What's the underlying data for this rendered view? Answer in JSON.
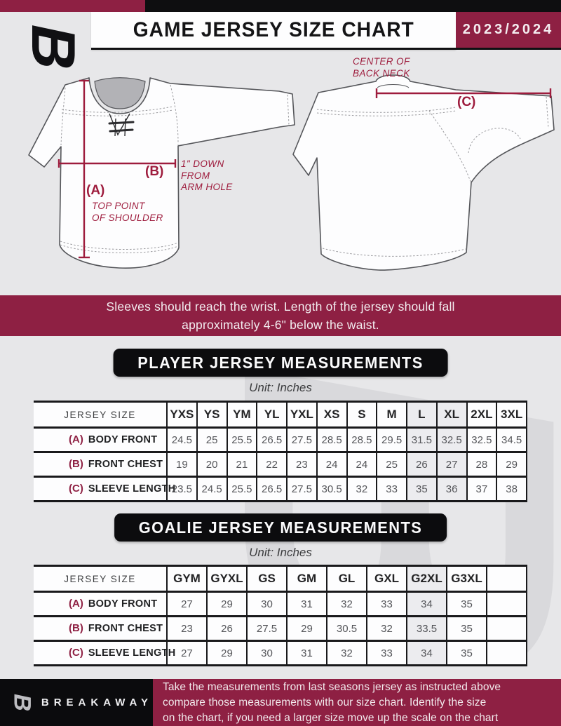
{
  "header": {
    "title": "GAME JERSEY SIZE CHART",
    "season": "2023/2024",
    "logo_glyph": "B"
  },
  "diagram": {
    "front_label_a": "(A)",
    "front_note_a": "TOP POINT\nOF SHOULDER",
    "front_label_b": "(B)",
    "front_note_b": "1\" DOWN\nFROM\nARM HOLE",
    "back_label_c": "(C)",
    "back_note_c": "CENTER OF\nBACK NECK"
  },
  "banner": {
    "lines": [
      "Sleeves should reach the wrist. Length of the jersey should fall",
      "approximately 4-6\" below the waist."
    ]
  },
  "player": {
    "title": "PLAYER JERSEY MEASUREMENTS",
    "unit": "Unit: Inches",
    "corner": "JERSEY SIZE",
    "sizes": [
      "YXS",
      "YS",
      "YM",
      "YL",
      "YXL",
      "XS",
      "S",
      "M",
      "L",
      "XL",
      "2XL",
      "3XL"
    ],
    "rows": [
      {
        "key": "(A)",
        "label": "BODY FRONT",
        "values": [
          "24.5",
          "25",
          "25.5",
          "26.5",
          "27.5",
          "28.5",
          "28.5",
          "29.5",
          "31.5",
          "32.5",
          "32.5",
          "34.5"
        ]
      },
      {
        "key": "(B)",
        "label": "FRONT CHEST",
        "values": [
          "19",
          "20",
          "21",
          "22",
          "23",
          "24",
          "24",
          "25",
          "26",
          "27",
          "28",
          "29"
        ]
      },
      {
        "key": "(C)",
        "label": "SLEEVE LENGTH",
        "values": [
          "23.5",
          "24.5",
          "25.5",
          "26.5",
          "27.5",
          "30.5",
          "32",
          "33",
          "35",
          "36",
          "37",
          "38"
        ]
      }
    ]
  },
  "goalie": {
    "title": "GOALIE JERSEY MEASUREMENTS",
    "unit": "Unit: Inches",
    "corner": "JERSEY SIZE",
    "sizes": [
      "GYM",
      "GYXL",
      "GS",
      "GM",
      "GL",
      "GXL",
      "G2XL",
      "G3XL",
      ""
    ],
    "rows": [
      {
        "key": "(A)",
        "label": "BODY FRONT",
        "values": [
          "27",
          "29",
          "30",
          "31",
          "32",
          "33",
          "34",
          "35",
          ""
        ]
      },
      {
        "key": "(B)",
        "label": "FRONT CHEST",
        "values": [
          "23",
          "26",
          "27.5",
          "29",
          "30.5",
          "32",
          "33.5",
          "35",
          ""
        ]
      },
      {
        "key": "(C)",
        "label": "SLEEVE LENGTH",
        "values": [
          "27",
          "29",
          "30",
          "31",
          "32",
          "33",
          "34",
          "35",
          ""
        ]
      }
    ]
  },
  "footer": {
    "brand": "BREAKAWAY",
    "lines": [
      "Take the measurements from last seasons jersey as instructed above",
      "compare those measurements  with our size chart. Identify the size",
      "on the chart, if you need a larger size move up the scale on the chart"
    ]
  },
  "colors": {
    "maroon": "#8E2043",
    "annotation_red": "#9E1C3D",
    "black": "#0E0E10",
    "page_bg": "#E7E7E9"
  }
}
